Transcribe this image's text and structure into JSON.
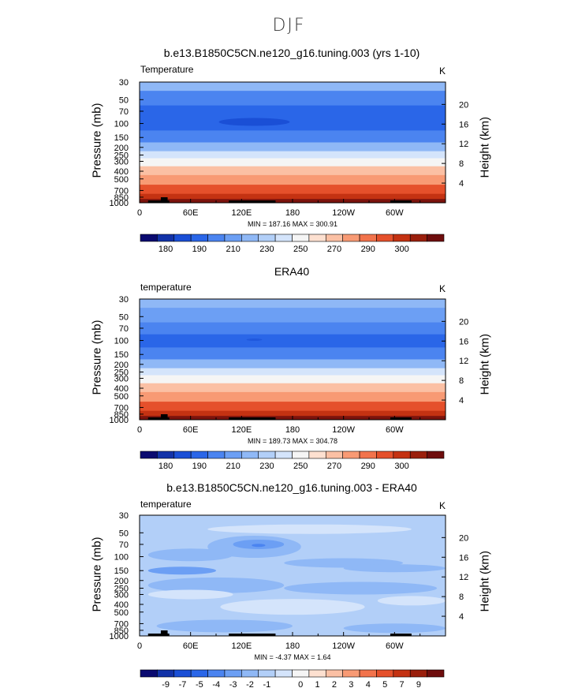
{
  "main_title": "DJF",
  "colors": {
    "full_palette": [
      "#0a0a70",
      "#1232a8",
      "#1a4fd6",
      "#2a66e8",
      "#4b84f0",
      "#6c9ff4",
      "#8fb8f6",
      "#b2cff8",
      "#d4e4fb",
      "#f5f5f5",
      "#fde0d0",
      "#fbc0a4",
      "#f89a74",
      "#f2734c",
      "#e5502b",
      "#c43212",
      "#9a1f0c",
      "#6e0d0d"
    ]
  },
  "chart_data": [
    {
      "type": "heatmap",
      "title": "b.e13.B1850C5CN.ne120_g16.tuning.003 (yrs 1-10)",
      "variable_label": "Temperature",
      "units": "K",
      "ylabel": "Pressure (mb)",
      "y2label": "Height (km)",
      "x_ticks": [
        "0",
        "60E",
        "120E",
        "180",
        "120W",
        "60W"
      ],
      "y_ticks": [
        "30",
        "50",
        "70",
        "100",
        "150",
        "200",
        "250",
        "300",
        "400",
        "500",
        "700",
        "850",
        "1000"
      ],
      "y2_ticks": [
        "20",
        "16",
        "12",
        "8",
        "4"
      ],
      "stats": "MIN = 187.16   MAX = 300.91",
      "colorbar_labels": [
        "180",
        "190",
        "210",
        "230",
        "250",
        "270",
        "290",
        "300"
      ],
      "ylim": [
        1000,
        30
      ],
      "xlim": [
        0,
        360
      ],
      "profile": [
        {
          "p": 30,
          "band": 6
        },
        {
          "p": 50,
          "band": 4
        },
        {
          "p": 70,
          "band": 3
        },
        {
          "p": 100,
          "band": 3
        },
        {
          "p": 150,
          "band": 4
        },
        {
          "p": 200,
          "band": 6
        },
        {
          "p": 250,
          "band": 8
        },
        {
          "p": 300,
          "band": 9
        },
        {
          "p": 400,
          "band": 11
        },
        {
          "p": 500,
          "band": 12
        },
        {
          "p": 700,
          "band": 14
        },
        {
          "p": 850,
          "band": 15
        },
        {
          "p": 1000,
          "band": 16
        }
      ]
    },
    {
      "type": "heatmap",
      "title": "ERA40",
      "variable_label": "temperature",
      "units": "K",
      "ylabel": "Pressure (mb)",
      "y2label": "Height (km)",
      "x_ticks": [
        "0",
        "60E",
        "120E",
        "180",
        "120W",
        "60W"
      ],
      "y_ticks": [
        "30",
        "50",
        "70",
        "100",
        "150",
        "200",
        "250",
        "300",
        "400",
        "500",
        "700",
        "850",
        "1000"
      ],
      "y2_ticks": [
        "20",
        "16",
        "12",
        "8",
        "4"
      ],
      "stats": "MIN = 189.73   MAX = 304.78",
      "colorbar_labels": [
        "180",
        "190",
        "210",
        "230",
        "250",
        "270",
        "290",
        "300"
      ],
      "ylim": [
        1000,
        30
      ],
      "xlim": [
        0,
        360
      ],
      "profile": [
        {
          "p": 30,
          "band": 6
        },
        {
          "p": 50,
          "band": 5
        },
        {
          "p": 70,
          "band": 4
        },
        {
          "p": 100,
          "band": 3
        },
        {
          "p": 150,
          "band": 4
        },
        {
          "p": 200,
          "band": 6
        },
        {
          "p": 250,
          "band": 8
        },
        {
          "p": 300,
          "band": 9
        },
        {
          "p": 400,
          "band": 11
        },
        {
          "p": 500,
          "band": 12
        },
        {
          "p": 700,
          "band": 14
        },
        {
          "p": 850,
          "band": 15
        },
        {
          "p": 1000,
          "band": 16
        }
      ]
    },
    {
      "type": "heatmap",
      "title": "b.e13.B1850C5CN.ne120_g16.tuning.003 - ERA40",
      "variable_label": "temperature",
      "units": "K",
      "ylabel": "Pressure (mb)",
      "y2label": "Height (km)",
      "x_ticks": [
        "0",
        "60E",
        "120E",
        "180",
        "120W",
        "60W"
      ],
      "y_ticks": [
        "30",
        "50",
        "70",
        "100",
        "150",
        "200",
        "250",
        "300",
        "400",
        "500",
        "700",
        "850",
        "1000"
      ],
      "y2_ticks": [
        "20",
        "16",
        "12",
        "8",
        "4"
      ],
      "stats": "MIN =  -4.37   MAX =   1.64",
      "colorbar_labels": [
        "-9",
        "-7",
        "-5",
        "-4",
        "-3",
        "-2",
        "-1",
        "0",
        "1",
        "2",
        "3",
        "4",
        "5",
        "7",
        "9"
      ],
      "ylim": [
        1000,
        30
      ],
      "xlim": [
        0,
        360
      ],
      "background_value": -1
    }
  ]
}
